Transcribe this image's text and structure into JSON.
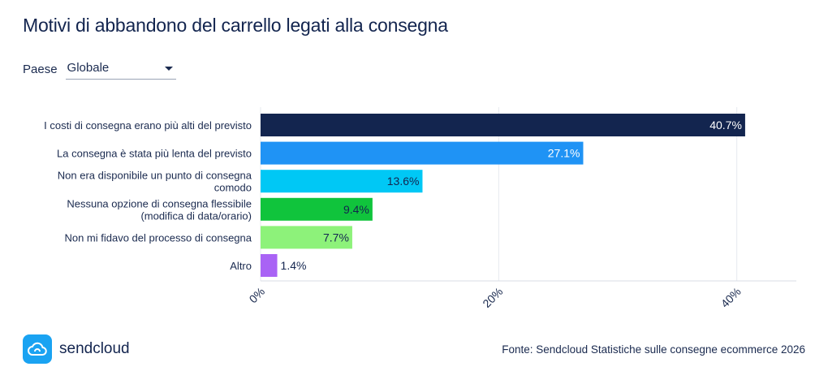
{
  "title": "Motivi di abbandono del carrello legati alla consegna",
  "filter": {
    "label": "Paese",
    "selected": "Globale"
  },
  "source": "Fonte: Sendcloud Statistiche sulle consegne ecommerce 2026",
  "brand": {
    "name": "sendcloud",
    "icon": "cloud-icon",
    "color": "#1aa3f2"
  },
  "chart_data": {
    "type": "bar",
    "orientation": "horizontal",
    "categories": [
      "I costi di consegna erano più alti del previsto",
      "La consegna è stata più lenta del previsto",
      "Non era disponibile un punto di consegna comodo",
      "Nessuna opzione di consegna flessibile (modifica di data/orario)",
      "Non mi fidavo del processo di consegna",
      "Altro"
    ],
    "category_lines": [
      [
        "I costi di consegna erano più alti del previsto"
      ],
      [
        "La consegna è stata più lenta del previsto"
      ],
      [
        "Non era disponibile un punto di consegna",
        "comodo"
      ],
      [
        "Nessuna opzione di consegna flessibile",
        "(modifica di data/orario)"
      ],
      [
        "Non mi fidavo del processo di consegna"
      ],
      [
        "Altro"
      ]
    ],
    "values": [
      40.7,
      27.1,
      13.6,
      9.4,
      7.7,
      1.4
    ],
    "data_labels": [
      "40.7%",
      "27.1%",
      "13.6%",
      "9.4%",
      "7.7%",
      "1.4%"
    ],
    "colors": [
      "#13254f",
      "#1f93f5",
      "#00c8f5",
      "#10c43c",
      "#8df27a",
      "#a963f5"
    ],
    "label_colors": [
      "#ffffff",
      "#ffffff",
      "#13254f",
      "#13254f",
      "#13254f",
      "#13254f"
    ],
    "xlim": [
      0,
      45
    ],
    "xticks": [
      0,
      20,
      40
    ],
    "xtick_labels": [
      "0%",
      "20%",
      "40%"
    ],
    "grid": true
  }
}
